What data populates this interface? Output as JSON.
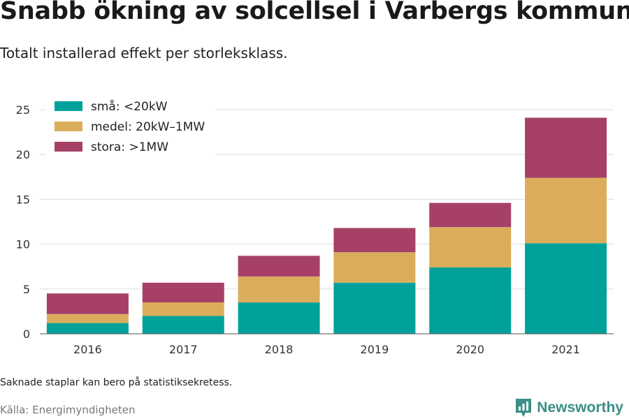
{
  "header": {
    "title": "Snabb ökning av solcellsel i Varbergs kommun",
    "subtitle": "Totalt installerad effekt per storleksklass."
  },
  "footer": {
    "note": "Saknade staplar kan bero på statistiksekretess.",
    "source": "Källa: Energimyndigheten",
    "brand": "Newsworthy",
    "brand_icon": "newsworthy-logo-icon"
  },
  "chart_data": {
    "type": "bar",
    "stacked": true,
    "categories": [
      "2016",
      "2017",
      "2018",
      "2019",
      "2020",
      "2021"
    ],
    "series": [
      {
        "name": "små: <20kW",
        "color": "#00a19a",
        "values": [
          1.2,
          2.0,
          3.5,
          5.7,
          7.4,
          10.1
        ]
      },
      {
        "name": "medel: 20kW–1MW",
        "color": "#dbad5b",
        "values": [
          1.0,
          1.5,
          2.9,
          3.4,
          4.5,
          7.3
        ]
      },
      {
        "name": "stora: >1MW",
        "color": "#a64067",
        "values": [
          2.3,
          2.2,
          2.3,
          2.7,
          2.7,
          6.7
        ]
      }
    ],
    "ylim": [
      0,
      25
    ],
    "yticks": [
      0,
      5,
      10,
      15,
      20,
      25
    ],
    "xlabel": "",
    "ylabel": "",
    "grid": true,
    "legend_position": "top-left"
  }
}
